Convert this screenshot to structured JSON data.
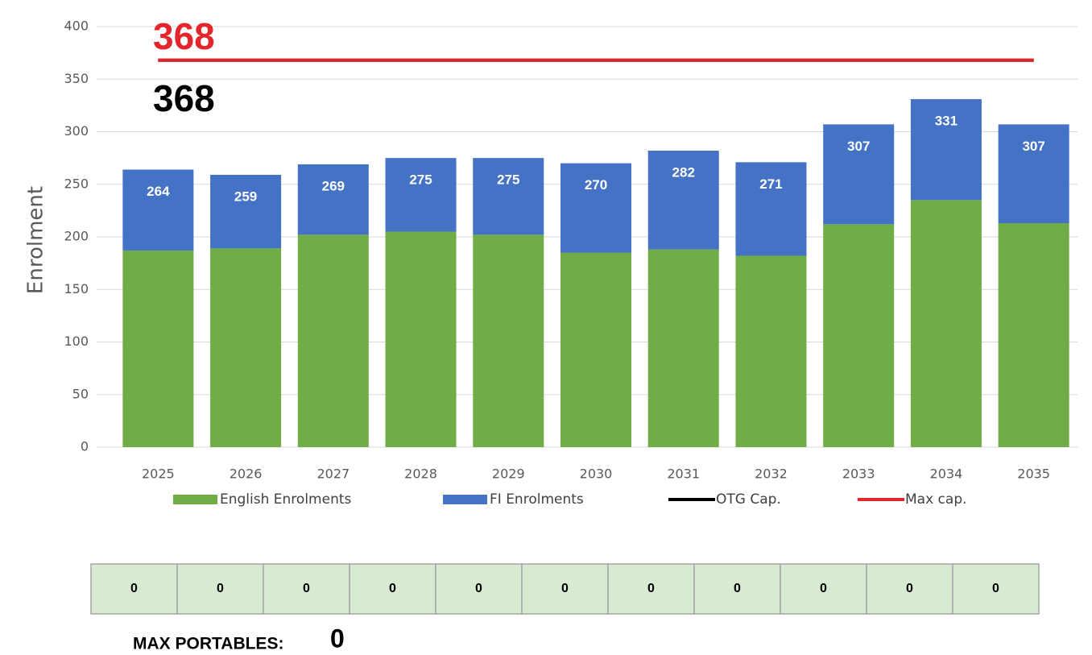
{
  "chart_data": {
    "type": "bar",
    "stacked": true,
    "ylabel": "Enrolment",
    "categories": [
      "2025",
      "2026",
      "2027",
      "2028",
      "2029",
      "2030",
      "2031",
      "2032",
      "2033",
      "2034",
      "2035"
    ],
    "series": [
      {
        "name": "English Enrolments",
        "color": "#70ad47",
        "values": [
          187,
          189,
          202,
          205,
          202,
          185,
          188,
          182,
          212,
          235,
          213
        ]
      },
      {
        "name": "FI Enrolments",
        "color": "#4472c4",
        "values": [
          77,
          70,
          67,
          70,
          73,
          85,
          94,
          89,
          95,
          96,
          94
        ]
      },
      {
        "name": "OTG Cap.",
        "color": "#000000",
        "type": "line",
        "values": [
          368,
          368,
          368,
          368,
          368,
          368,
          368,
          368,
          368,
          368,
          368
        ]
      },
      {
        "name": "Max cap.",
        "color": "#e3262c",
        "type": "line",
        "values": [
          368,
          368,
          368,
          368,
          368,
          368,
          368,
          368,
          368,
          368,
          368
        ]
      }
    ],
    "totals": [
      264,
      259,
      269,
      275,
      275,
      270,
      282,
      271,
      307,
      331,
      307
    ],
    "ylim": [
      0,
      400
    ],
    "yticks": [
      0,
      50,
      100,
      150,
      200,
      250,
      300,
      350,
      400
    ],
    "grid": true,
    "legend": "bottom"
  },
  "table": {
    "rows": [
      [
        0,
        0,
        0,
        0,
        0,
        0,
        0,
        0,
        0,
        0,
        0
      ]
    ]
  },
  "max_portables": {
    "label": "MAX PORTABLES:",
    "value": 0
  }
}
